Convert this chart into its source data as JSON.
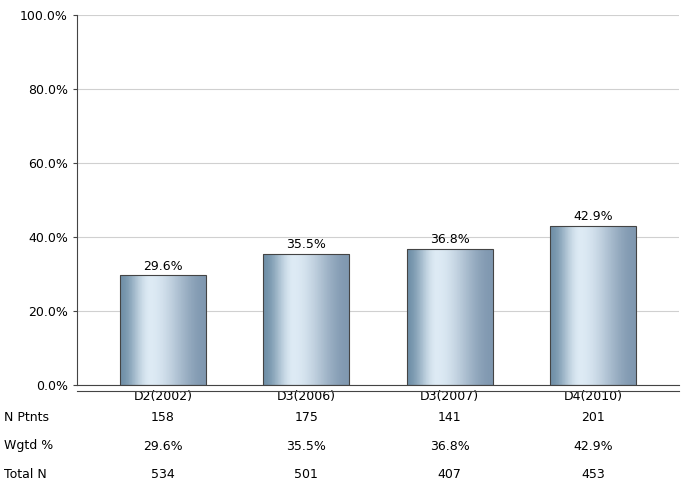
{
  "categories": [
    "D2(2002)",
    "D3(2006)",
    "D3(2007)",
    "D4(2010)"
  ],
  "values": [
    29.6,
    35.5,
    36.8,
    42.9
  ],
  "n_ptnts": [
    158,
    175,
    141,
    201
  ],
  "wgtd_pct": [
    "29.6%",
    "35.5%",
    "36.8%",
    "42.9%"
  ],
  "total_n": [
    534,
    501,
    407,
    453
  ],
  "ylim": [
    0,
    100
  ],
  "yticks": [
    0,
    20,
    40,
    60,
    80,
    100
  ],
  "ytick_labels": [
    "0.0%",
    "20.0%",
    "40.0%",
    "60.0%",
    "80.0%",
    "100.0%"
  ],
  "label_fontsize": 9,
  "tick_fontsize": 9,
  "table_fontsize": 9,
  "bar_width": 0.6,
  "bg_color": "#ffffff",
  "grid_color": "#d0d0d0",
  "border_color": "#444444",
  "row_labels": [
    "N Ptnts",
    "Wgtd %",
    "Total N"
  ],
  "bar_edge_color": "#7090a8",
  "bar_mid_color": "#ddeaf4",
  "bar_right_color": "#8098b0"
}
